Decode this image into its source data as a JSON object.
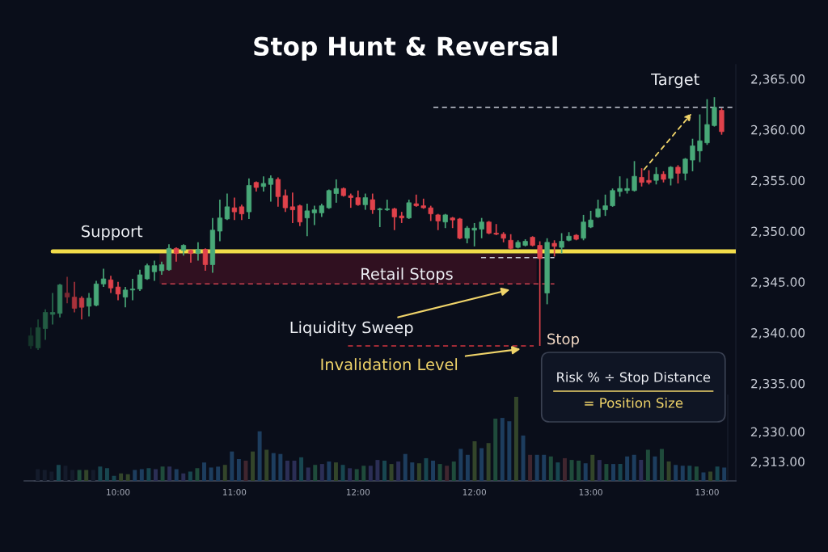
{
  "chart_data": [
    {
      "type": "candlestick",
      "title": "Stop Hunt & Reversal",
      "categories": [
        null,
        null,
        null,
        null,
        null,
        null,
        null,
        null,
        null,
        null,
        null,
        null,
        "10:00",
        null,
        null,
        null,
        null,
        null,
        null,
        null,
        null,
        null,
        null,
        null,
        null,
        null,
        null,
        null,
        "11:00",
        null,
        null,
        null,
        null,
        null,
        null,
        null,
        null,
        null,
        null,
        null,
        null,
        null,
        null,
        null,
        null,
        "12:00",
        null,
        null,
        null,
        null,
        null,
        null,
        null,
        null,
        null,
        null,
        null,
        null,
        null,
        null,
        null,
        "12:00",
        null,
        null,
        null,
        null,
        null,
        null,
        null,
        null,
        null,
        null,
        null,
        null,
        null,
        null,
        null,
        "13:00",
        null,
        null,
        null,
        null,
        null,
        null,
        null,
        null,
        null,
        null,
        null,
        null,
        null,
        null,
        null,
        "13:00",
        null,
        null
      ],
      "ohlc": [
        [
          2338.7,
          2340.5,
          2338.4,
          2339.7
        ],
        [
          2338.5,
          2341.3,
          2338.3,
          2340.5
        ],
        [
          2340.4,
          2342.3,
          2339.3,
          2342.0
        ],
        [
          2341.8,
          2343.9,
          2340.8,
          2342.0
        ],
        [
          2341.9,
          2344.8,
          2341.5,
          2344.7
        ],
        [
          2343.9,
          2345.5,
          2342.9,
          2343.5
        ],
        [
          2343.5,
          2345.0,
          2342.0,
          2342.4
        ],
        [
          2343.4,
          2343.6,
          2341.3,
          2342.5
        ],
        [
          2342.6,
          2343.9,
          2341.6,
          2343.4
        ],
        [
          2342.7,
          2345.1,
          2342.6,
          2344.8
        ],
        [
          2344.8,
          2346.3,
          2344.5,
          2345.3
        ],
        [
          2345.2,
          2345.6,
          2343.9,
          2344.4
        ],
        [
          2344.5,
          2345.0,
          2343.2,
          2343.8
        ],
        [
          2343.5,
          2344.5,
          2342.5,
          2344.2
        ],
        [
          2344.2,
          2345.3,
          2343.2,
          2344.3
        ],
        [
          2344.3,
          2346.2,
          2344.1,
          2345.7
        ],
        [
          2345.3,
          2346.8,
          2345.2,
          2346.6
        ],
        [
          2346.0,
          2347.1,
          2345.1,
          2346.6
        ],
        [
          2346.1,
          2347.0,
          2345.7,
          2346.7
        ],
        [
          2346.2,
          2348.7,
          2346.1,
          2348.3
        ],
        [
          2348.3,
          2348.4,
          2347.0,
          2347.8
        ],
        [
          2348.1,
          2348.7,
          2347.6,
          2348.6
        ],
        [
          2348.1,
          2348.2,
          2346.9,
          2347.8
        ],
        [
          2347.8,
          2348.9,
          2347.1,
          2348.2
        ],
        [
          2348.2,
          2348.3,
          2346.1,
          2346.7
        ],
        [
          2346.7,
          2351.3,
          2345.9,
          2350.1
        ],
        [
          2350.0,
          2353.1,
          2349.0,
          2351.3
        ],
        [
          2351.2,
          2353.7,
          2351.1,
          2352.4
        ],
        [
          2352.3,
          2353.3,
          2351.1,
          2351.9
        ],
        [
          2352.4,
          2352.6,
          2351.1,
          2351.7
        ],
        [
          2351.9,
          2355.2,
          2351.2,
          2354.5
        ],
        [
          2354.8,
          2354.9,
          2353.9,
          2354.3
        ],
        [
          2354.4,
          2355.4,
          2353.9,
          2354.7
        ],
        [
          2354.6,
          2355.5,
          2352.9,
          2355.2
        ],
        [
          2355.1,
          2355.3,
          2352.4,
          2353.4
        ],
        [
          2353.5,
          2354.1,
          2351.9,
          2352.3
        ],
        [
          2352.4,
          2353.8,
          2350.8,
          2352.1
        ],
        [
          2352.5,
          2352.6,
          2350.5,
          2350.9
        ],
        [
          2351.3,
          2352.7,
          2349.5,
          2352.0
        ],
        [
          2351.8,
          2352.5,
          2350.6,
          2352.1
        ],
        [
          2351.8,
          2352.7,
          2351.4,
          2352.5
        ],
        [
          2352.3,
          2354.1,
          2352.2,
          2354.0
        ],
        [
          2353.7,
          2355.1,
          2352.8,
          2354.2
        ],
        [
          2354.2,
          2354.3,
          2353.4,
          2353.5
        ],
        [
          2353.5,
          2353.7,
          2352.3,
          2353.3
        ],
        [
          2353.3,
          2354.0,
          2352.5,
          2352.6
        ],
        [
          2352.6,
          2353.7,
          2352.1,
          2353.3
        ],
        [
          2353.1,
          2353.7,
          2351.7,
          2352.1
        ],
        [
          2352.1,
          2352.3,
          2350.4,
          2352.2
        ],
        [
          2352.1,
          2353.1,
          2352.0,
          2352.2
        ],
        [
          2352.2,
          2352.3,
          2350.1,
          2351.4
        ],
        [
          2351.5,
          2351.9,
          2350.8,
          2351.3
        ],
        [
          2351.3,
          2353.1,
          2351.2,
          2352.8
        ],
        [
          2352.7,
          2353.6,
          2352.4,
          2352.5
        ],
        [
          2352.5,
          2353.2,
          2352.2,
          2352.3
        ],
        [
          2352.3,
          2352.5,
          2351.0,
          2351.7
        ],
        [
          2351.6,
          2351.7,
          2350.1,
          2351.0
        ],
        [
          2350.9,
          2351.7,
          2350.3,
          2351.6
        ],
        [
          2351.3,
          2351.4,
          2350.3,
          2351.1
        ],
        [
          2351.2,
          2351.3,
          2349.2,
          2349.3
        ],
        [
          2349.3,
          2350.5,
          2348.8,
          2350.3
        ],
        [
          2350.1,
          2350.8,
          2348.5,
          2350.3
        ],
        [
          2350.2,
          2351.3,
          2349.3,
          2350.9
        ],
        [
          2350.9,
          2351.0,
          2349.7,
          2349.8
        ],
        [
          2349.8,
          2350.7,
          2349.6,
          2349.7
        ],
        [
          2349.7,
          2349.9,
          2348.9,
          2349.3
        ],
        [
          2349.1,
          2349.7,
          2348.2,
          2348.3
        ],
        [
          2348.4,
          2349.1,
          2348.3,
          2348.9
        ],
        [
          2348.6,
          2349.2,
          2348.5,
          2349.0
        ],
        [
          2349.4,
          2349.5,
          2348.5,
          2348.6
        ],
        [
          2348.6,
          2349.0,
          2338.7,
          2347.3
        ],
        [
          2343.9,
          2349.3,
          2342.8,
          2348.9
        ],
        [
          2348.8,
          2349.1,
          2347.5,
          2348.5
        ],
        [
          2348.4,
          2349.8,
          2347.8,
          2349.0
        ],
        [
          2349.1,
          2349.9,
          2349.0,
          2349.5
        ],
        [
          2349.6,
          2349.7,
          2349.1,
          2349.2
        ],
        [
          2349.3,
          2351.6,
          2349.1,
          2350.9
        ],
        [
          2350.4,
          2352.0,
          2350.3,
          2351.1
        ],
        [
          2351.4,
          2353.1,
          2351.3,
          2352.2
        ],
        [
          2352.1,
          2353.6,
          2351.5,
          2352.5
        ],
        [
          2352.5,
          2354.2,
          2352.4,
          2354.0
        ],
        [
          2353.9,
          2355.4,
          2353.4,
          2354.2
        ],
        [
          2354.0,
          2355.2,
          2353.7,
          2354.2
        ],
        [
          2354.0,
          2356.9,
          2353.9,
          2355.4
        ],
        [
          2355.3,
          2356.2,
          2354.4,
          2354.8
        ],
        [
          2355.0,
          2356.0,
          2354.6,
          2354.8
        ],
        [
          2355.0,
          2356.3,
          2354.6,
          2355.6
        ],
        [
          2355.6,
          2355.9,
          2354.8,
          2355.1
        ],
        [
          2355.2,
          2356.4,
          2354.5,
          2356.3
        ],
        [
          2356.3,
          2356.5,
          2354.7,
          2355.7
        ],
        [
          2355.7,
          2357.2,
          2355.0,
          2357.1
        ],
        [
          2357.0,
          2359.1,
          2355.9,
          2358.4
        ],
        [
          2357.9,
          2361.5,
          2356.8,
          2358.9
        ],
        [
          2358.7,
          2363.0,
          2358.5,
          2360.5
        ],
        [
          2360.4,
          2363.2,
          2360.3,
          2362.2
        ],
        [
          2361.9,
          2362.1,
          2359.5,
          2359.8
        ]
      ],
      "colors": [
        "#15352a",
        "#1c4a36",
        "#235c43",
        "#2a6d4f",
        "#33805c",
        "#7a2a33",
        "#a8323b",
        "#c23a43",
        "#3d9469",
        "#48a878",
        "#48a878",
        "#e0424b",
        "#e0424b",
        "#48a878",
        "#48a878",
        "#48a878",
        "#48a878",
        "#48a878",
        "#48a878",
        "#48a878",
        "#e0424b",
        "#48a878",
        "#e0424b",
        "#48a878",
        "#e0424b",
        "#48a878",
        "#48a878",
        "#48a878",
        "#e0424b",
        "#e0424b",
        "#48a878",
        "#e0424b",
        "#48a878",
        "#48a878",
        "#e0424b",
        "#e0424b",
        "#e0424b",
        "#e0424b",
        "#48a878",
        "#48a878",
        "#48a878",
        "#48a878",
        "#48a878",
        "#e0424b",
        "#e0424b",
        "#e0424b",
        "#48a878",
        "#e0424b",
        "#48a878",
        "#48a878",
        "#e0424b",
        "#e0424b",
        "#48a878",
        "#e0424b",
        "#e0424b",
        "#e0424b",
        "#e0424b",
        "#48a878",
        "#e0424b",
        "#e0424b",
        "#48a878",
        "#48a878",
        "#48a878",
        "#e0424b",
        "#e0424b",
        "#e0424b",
        "#e0424b",
        "#48a878",
        "#48a878",
        "#e0424b",
        "#e0424b",
        "#48a878",
        "#e0424b",
        "#48a878",
        "#48a878",
        "#e0424b",
        "#48a878",
        "#48a878",
        "#48a878",
        "#48a878",
        "#48a878",
        "#48a878",
        "#48a878",
        "#48a878",
        "#e0424b",
        "#e0424b",
        "#48a878",
        "#e0424b",
        "#48a878",
        "#e0424b",
        "#48a878",
        "#48a878",
        "#48a878",
        "#48a878",
        "#48a878",
        "#e0424b"
      ],
      "ylim": [
        2325.4,
        2366.4
      ],
      "yticks": [
        {
          "value": 2365,
          "label": "2,365.00"
        },
        {
          "value": 2360,
          "label": "2,360.00"
        },
        {
          "value": 2355,
          "label": "2,355.00"
        },
        {
          "value": 2350,
          "label": "2,350.00"
        },
        {
          "value": 2345,
          "label": "2,345.00"
        },
        {
          "value": 2340,
          "label": "2,340.00"
        },
        {
          "value": 2335,
          "label": "2,335.00"
        }
      ],
      "ref_lines": [
        {
          "axis": "y",
          "value": 2348.0,
          "label": "Support",
          "color": "#f2dc4a",
          "line_style": "solid"
        },
        {
          "axis": "y",
          "value": 2347.4,
          "color": "#c8ccd6",
          "line_style": "dashed"
        },
        {
          "axis": "y",
          "value": 2344.8,
          "color": "#c8404e",
          "line_style": "dashed"
        },
        {
          "axis": "y",
          "value": 2338.7,
          "label": "Stop",
          "color": "#d0343f",
          "line_style": "dashed"
        },
        {
          "axis": "y",
          "value": 2362.2,
          "label": "Target",
          "color": "#c8ccd6",
          "line_style": "dashed"
        }
      ],
      "bands": [
        {
          "axis": "y",
          "from": 2344.8,
          "to": 2347.8,
          "label": "Retail Stops",
          "color": "#3a1222"
        }
      ],
      "annotations": [
        "Liquidity Sweep",
        {
          "text": "Invalidation Level",
          "y": 2338.4
        },
        "Risk % ÷ Stop Distance",
        "= Position Size"
      ]
    },
    {
      "type": "bar",
      "categories": [
        null,
        null,
        null,
        null,
        null,
        null,
        null,
        null,
        null,
        null,
        null,
        null,
        null,
        null,
        null,
        null,
        null,
        null,
        null,
        null,
        null,
        null,
        null,
        null,
        null,
        null,
        null,
        null,
        null,
        null,
        null,
        null,
        null,
        null,
        null,
        null,
        null,
        null,
        null,
        null,
        null,
        null,
        null,
        null,
        null,
        null,
        null,
        null,
        null,
        null,
        null,
        null,
        null,
        null,
        null,
        null,
        null,
        null,
        null,
        null,
        null,
        null,
        null,
        null,
        null,
        null,
        null,
        null,
        null,
        null,
        null,
        null,
        null,
        null,
        null,
        null,
        null,
        null,
        null,
        null,
        null,
        null,
        null,
        null,
        null,
        null,
        null,
        null,
        null,
        null,
        null,
        null,
        null,
        null,
        null,
        null,
        null,
        null,
        null,
        null
      ],
      "values": [
        2308.7,
        2308.2,
        2307.3,
        2311.1,
        2310.6,
        2308.2,
        2308.2,
        2308.2,
        2308.2,
        2310.1,
        2309.2,
        2304.9,
        2306.3,
        2305.8,
        2308.2,
        2308.7,
        2309.2,
        2308.7,
        2310.1,
        2310.1,
        2308.7,
        2306.3,
        2307.3,
        2309.2,
        2312.5,
        2309.6,
        2310.1,
        2311.1,
        2318.7,
        2314.4,
        2313.5,
        2318.7,
        2330.2,
        2319.7,
        2317.8,
        2317.3,
        2313.5,
        2313.5,
        2315.4,
        2309.6,
        2311.1,
        2311.6,
        2313.0,
        2312.5,
        2311.1,
        2309.2,
        2308.7,
        2310.6,
        2310.6,
        2313.9,
        2313.5,
        2311.6,
        2313.0,
        2317.3,
        2312.5,
        2312.0,
        2314.9,
        2313.5,
        2311.6,
        2310.6,
        2313.0,
        2320.2,
        2316.8,
        2324.5,
        2320.6,
        2323.5,
        2337.4,
        2337.8,
        2335.9,
        2349.8,
        2327.8,
        2316.8,
        2316.8,
        2316.8,
        2315.9,
        2312.5,
        2314.9,
        2313.9,
        2313.5,
        2312.0,
        2316.8,
        2313.9,
        2311.6,
        2311.6,
        2311.6,
        2315.9,
        2316.8,
        2313.9,
        2319.7,
        2315.9,
        2320.2,
        2313.0,
        2311.1,
        2310.6,
        2310.6,
        2310.1,
        2306.8,
        2307.3,
        2310.1,
        2309.6
      ],
      "colors": [
        "#141b2b",
        "#141b2b",
        "#141b2b",
        "#184650",
        "#141b2b",
        "#141b2b",
        "#1f4b3b",
        "#33452a",
        "#141b2b",
        "#184650",
        "#184650",
        "#184650",
        "#33452a",
        "#33452a",
        "#1d3d5e",
        "#1d3d5e",
        "#184650",
        "#2b2e55",
        "#1f4b3b",
        "#2b2e55",
        "#1d3d5e",
        "#2b2e55",
        "#184650",
        "#1f4b3b",
        "#1d3d5e",
        "#1d3d5e",
        "#1d3d5e",
        "#33452a",
        "#1d3d5e",
        "#1d3d5e",
        "#40262f",
        "#33452a",
        "#1d3d5e",
        "#33452a",
        "#1d3d5e",
        "#1d3d5e",
        "#2b2e55",
        "#2b2e55",
        "#184650",
        "#2b2e55",
        "#1f4b3b",
        "#2b2e55",
        "#1d3d5e",
        "#33452a",
        "#184650",
        "#2b2e55",
        "#1f4b3b",
        "#1f4b3b",
        "#2b2e55",
        "#2b2e55",
        "#184650",
        "#33452a",
        "#2b2e55",
        "#1d3d5e",
        "#1d3d5e",
        "#33452a",
        "#184650",
        "#1d3d5e",
        "#1f4b3b",
        "#40262f",
        "#1f4b3b",
        "#1d3d5e",
        "#1d3d5e",
        "#33452a",
        "#1d3d5e",
        "#33452a",
        "#1f4b3b",
        "#1d3d5e",
        "#1d3d5e",
        "#33452a",
        "#1d3d5e",
        "#40262f",
        "#1d3d5e",
        "#1d3d5e",
        "#1f4b3b",
        "#184650",
        "#40262f",
        "#1f4b3b",
        "#1f4b3b",
        "#1d3d5e",
        "#33452a",
        "#2b2e55",
        "#1f4b3b",
        "#1d3d5e",
        "#184650",
        "#1d3d5e",
        "#1d3d5e",
        "#2b2e55",
        "#1f4b3b",
        "#1d3d5e",
        "#1f4b3b",
        "#33452a",
        "#1d3d5e",
        "#1d3d5e",
        "#184650",
        "#1f4b3b",
        "#1d3d5e",
        "#33452a",
        "#184650",
        "#1d3d5e"
      ],
      "ylim": [
        2302.0,
        2350.7
      ],
      "yticks": [
        {
          "value": 2330,
          "label": "2,330.00"
        },
        {
          "value": 2313,
          "label": "2,313.00"
        }
      ]
    }
  ]
}
